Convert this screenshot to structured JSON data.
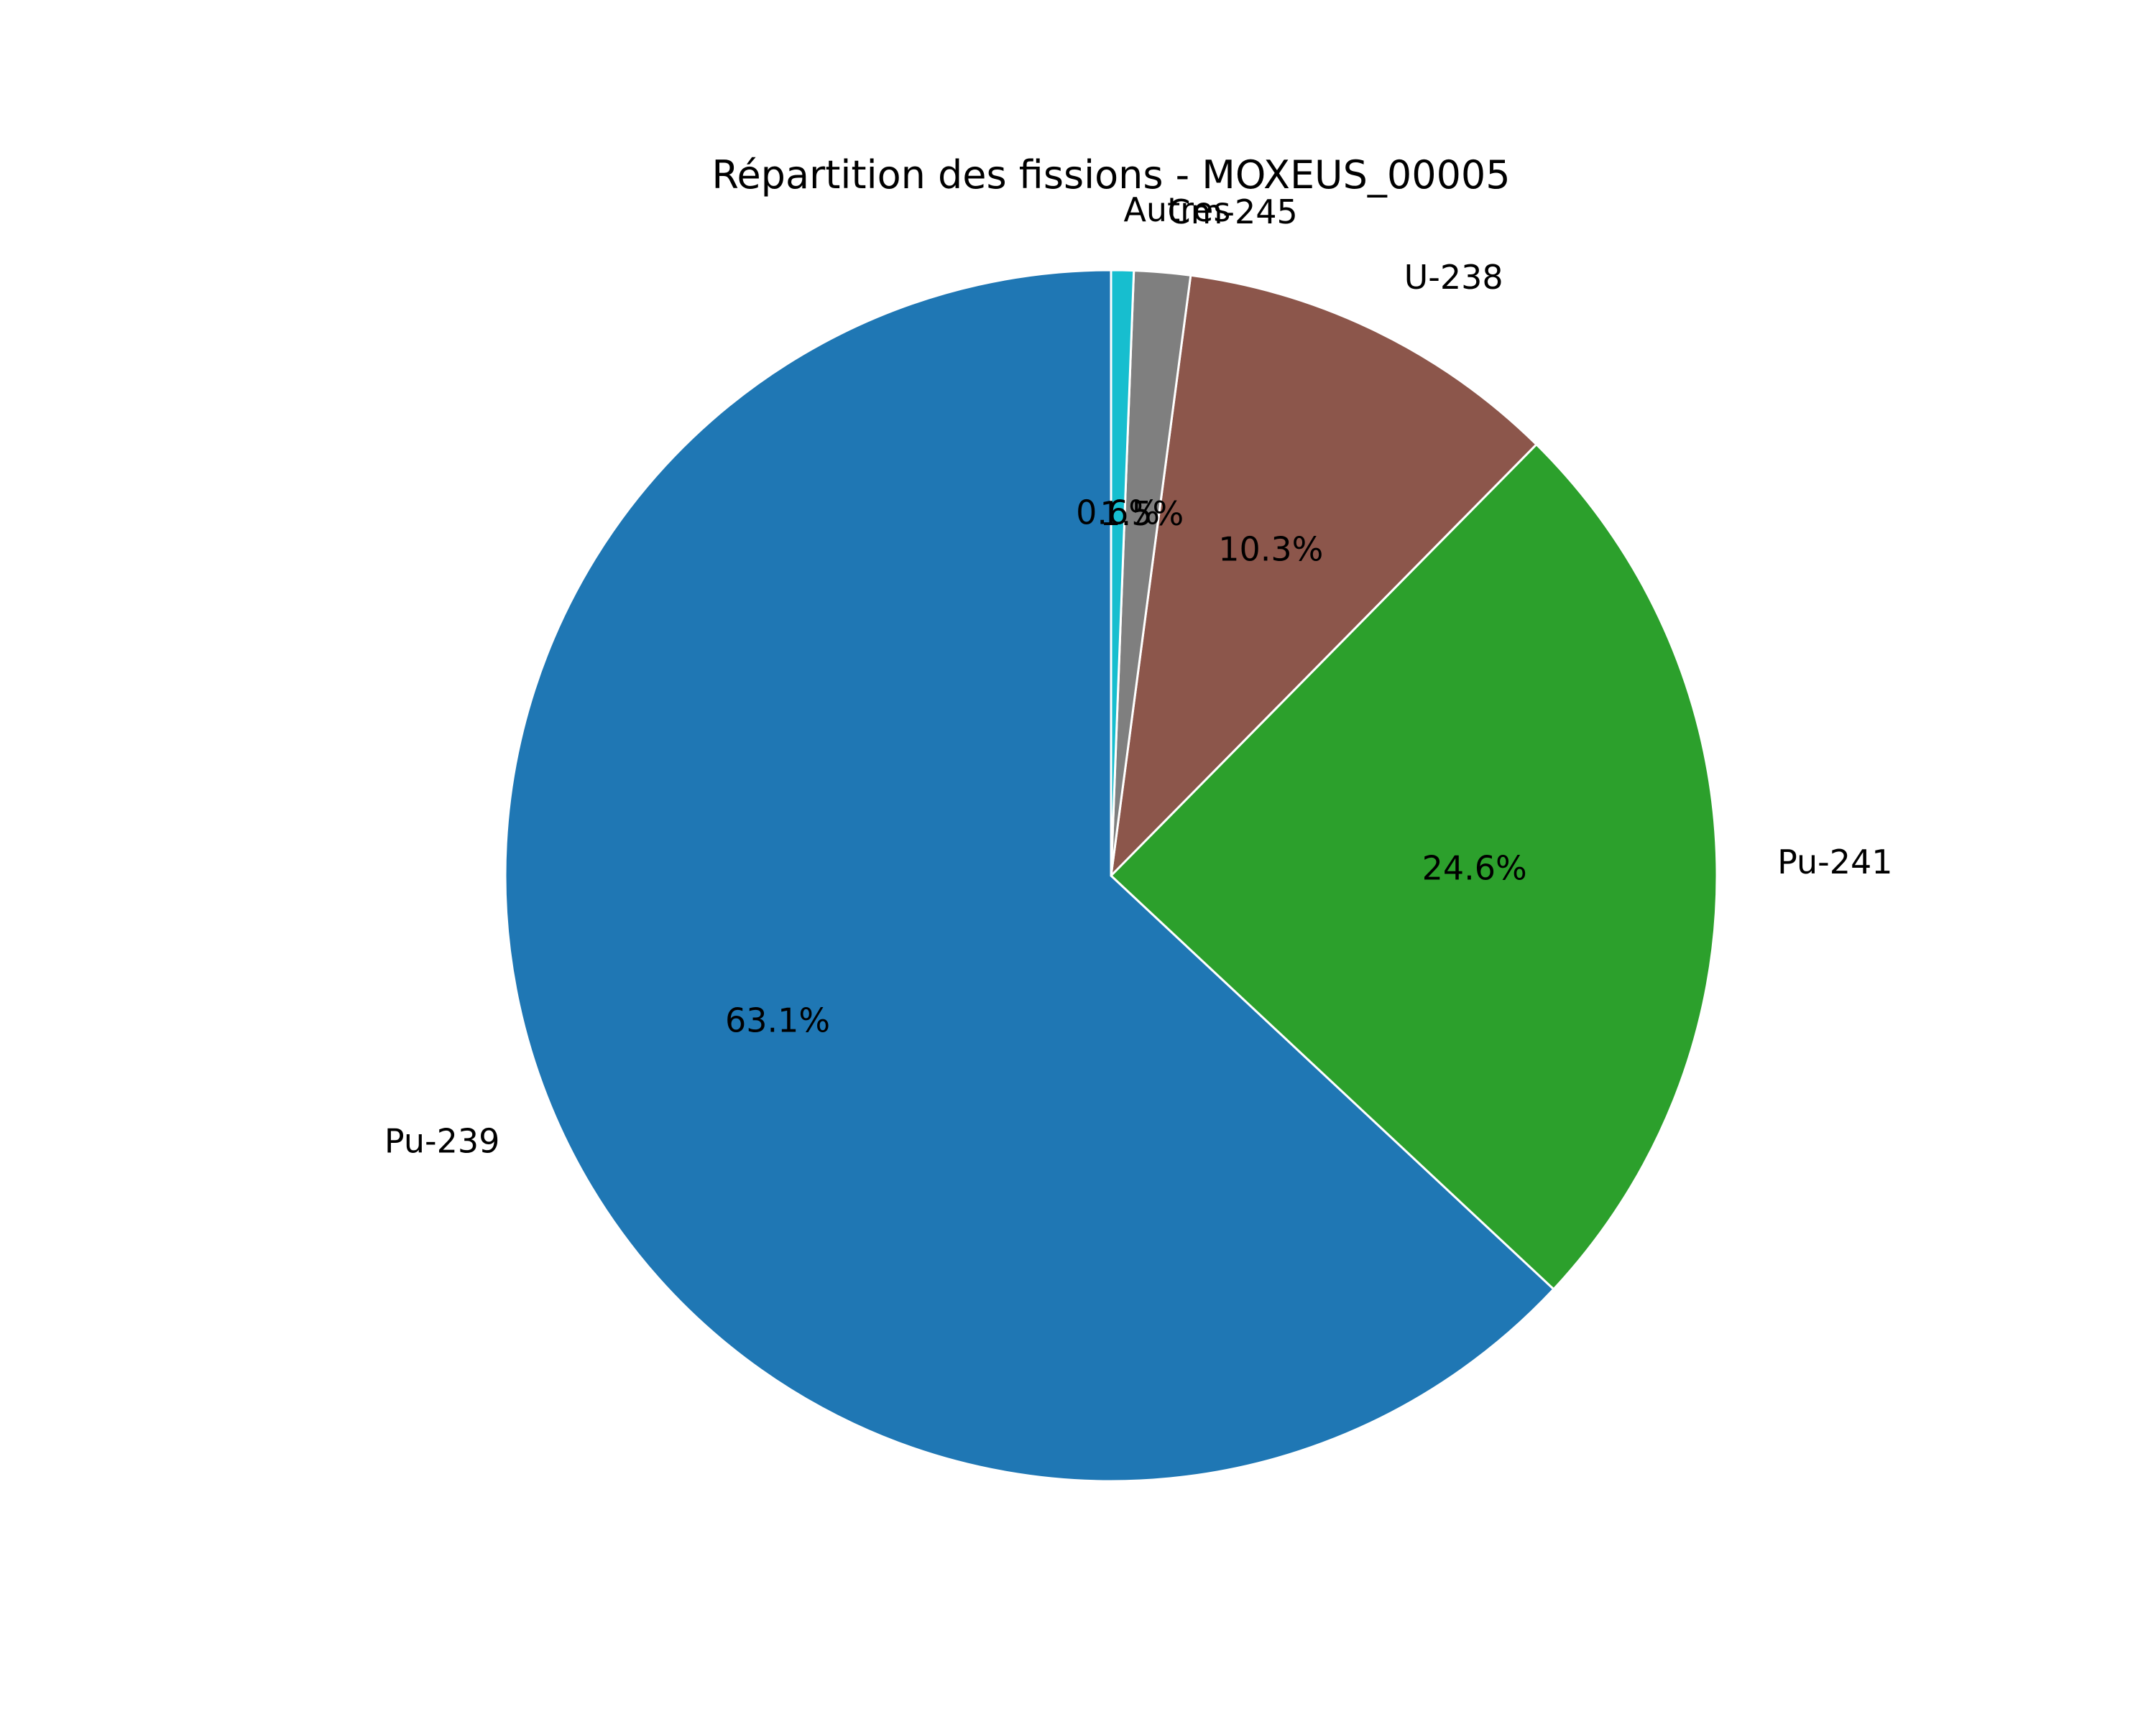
{
  "chart_data": {
    "type": "pie",
    "title": "Répartition des fissions - MOXEUS_00005",
    "slices": [
      {
        "label": "Pu-239",
        "value": 63.1,
        "pct_label": "63.1%",
        "color": "#1f77b4"
      },
      {
        "label": "Pu-241",
        "value": 24.6,
        "pct_label": "24.6%",
        "color": "#2ca02c"
      },
      {
        "label": "U-238",
        "value": 10.3,
        "pct_label": "10.3%",
        "color": "#8c564b"
      },
      {
        "label": "Cm-245",
        "value": 1.5,
        "pct_label": "1.5%",
        "color": "#7f7f7f"
      },
      {
        "label": "Autres",
        "value": 0.6,
        "pct_label": "0.6%",
        "color": "#17becf"
      }
    ],
    "start_angle": "top",
    "direction": "counterclockwise",
    "edge_color": "#ffffff"
  }
}
